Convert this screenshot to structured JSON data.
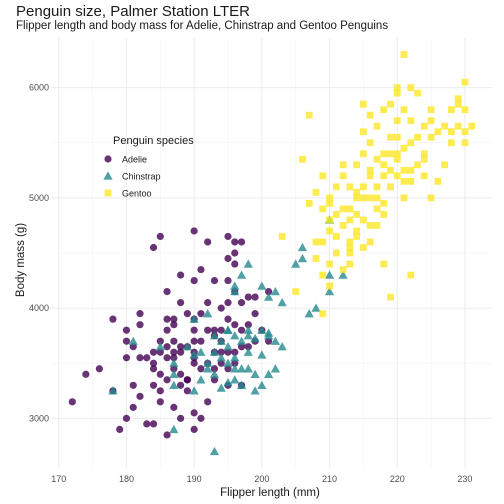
{
  "chart_data": {
    "type": "scatter",
    "title": "Penguin size, Palmer Station LTER",
    "subtitle": "Flipper length and body mass for Adelie, Chinstrap and Gentoo Penguins",
    "xlabel": "Flipper length (mm)",
    "ylabel": "Body mass (g)",
    "xlim": [
      169,
      234
    ],
    "ylim": [
      2550,
      6450
    ],
    "xticks": [
      170,
      180,
      190,
      200,
      210,
      220,
      230
    ],
    "yticks": [
      3000,
      4000,
      5000,
      6000
    ],
    "grid": true,
    "legend": {
      "title": "Penguin species",
      "placement": "inside-left"
    },
    "series": [
      {
        "name": "Adelie",
        "marker": "circle",
        "color": "#440154",
        "points": [
          [
            172,
            3150
          ],
          [
            174,
            3400
          ],
          [
            176,
            3450
          ],
          [
            178,
            3250
          ],
          [
            178,
            3900
          ],
          [
            180,
            3700
          ],
          [
            180,
            3800
          ],
          [
            180,
            3550
          ],
          [
            180,
            3000
          ],
          [
            181,
            3650
          ],
          [
            181,
            3300
          ],
          [
            182,
            3200
          ],
          [
            182,
            3950
          ],
          [
            182,
            3850
          ],
          [
            183,
            3550
          ],
          [
            184,
            3450
          ],
          [
            184,
            3600
          ],
          [
            184,
            3300
          ],
          [
            184,
            2950
          ],
          [
            185,
            3700
          ],
          [
            185,
            3600
          ],
          [
            185,
            3250
          ],
          [
            185,
            3150
          ],
          [
            185,
            3400
          ],
          [
            186,
            3800
          ],
          [
            186,
            3550
          ],
          [
            186,
            3650
          ],
          [
            186,
            4150
          ],
          [
            186,
            3350
          ],
          [
            187,
            3700
          ],
          [
            187,
            3850
          ],
          [
            187,
            3450
          ],
          [
            187,
            3550
          ],
          [
            187,
            3600
          ],
          [
            188,
            3300
          ],
          [
            188,
            3400
          ],
          [
            188,
            3600
          ],
          [
            188,
            4300
          ],
          [
            189,
            3650
          ],
          [
            189,
            3350
          ],
          [
            189,
            3950
          ],
          [
            189,
            3250
          ],
          [
            190,
            3600
          ],
          [
            190,
            3700
          ],
          [
            190,
            3800
          ],
          [
            190,
            3900
          ],
          [
            190,
            4250
          ],
          [
            190,
            3500
          ],
          [
            190,
            3550
          ],
          [
            190,
            3050
          ],
          [
            191,
            3450
          ],
          [
            191,
            3700
          ],
          [
            191,
            3950
          ],
          [
            191,
            4350
          ],
          [
            192,
            3800
          ],
          [
            192,
            4050
          ],
          [
            192,
            4600
          ],
          [
            192,
            3500
          ],
          [
            193,
            3600
          ],
          [
            193,
            3800
          ],
          [
            193,
            4250
          ],
          [
            193,
            3750
          ],
          [
            193,
            3450
          ],
          [
            194,
            3700
          ],
          [
            194,
            3800
          ],
          [
            194,
            4000
          ],
          [
            194,
            3600
          ],
          [
            194,
            3500
          ],
          [
            195,
            3900
          ],
          [
            195,
            4050
          ],
          [
            195,
            3600
          ],
          [
            195,
            4450
          ],
          [
            195,
            3300
          ],
          [
            195,
            3450
          ],
          [
            196,
            3500
          ],
          [
            196,
            3850
          ],
          [
            196,
            4150
          ],
          [
            196,
            4400
          ],
          [
            196,
            3600
          ],
          [
            197,
            3650
          ],
          [
            197,
            3800
          ],
          [
            197,
            4050
          ],
          [
            197,
            4600
          ],
          [
            197,
            3300
          ],
          [
            198,
            3850
          ],
          [
            198,
            3650
          ],
          [
            198,
            4100
          ],
          [
            199,
            3950
          ],
          [
            199,
            3700
          ],
          [
            199,
            4100
          ],
          [
            200,
            3800
          ],
          [
            201,
            3700
          ],
          [
            201,
            4150
          ],
          [
            184,
            4550
          ],
          [
            185,
            4650
          ],
          [
            190,
            4700
          ],
          [
            195,
            4250
          ],
          [
            196,
            4500
          ],
          [
            190,
            2900
          ],
          [
            188,
            3000
          ],
          [
            187,
            3100
          ],
          [
            186,
            2850
          ],
          [
            183,
            2950
          ],
          [
            179,
            2900
          ],
          [
            195,
            4650
          ],
          [
            196,
            4600
          ],
          [
            188,
            4050
          ],
          [
            189,
            3350
          ],
          [
            191,
            3000
          ],
          [
            187,
            3900
          ],
          [
            184,
            3500
          ],
          [
            181,
            3100
          ],
          [
            182,
            3550
          ],
          [
            186,
            3900
          ],
          [
            188,
            3650
          ],
          [
            192,
            3150
          ],
          [
            193,
            3350
          ]
        ]
      },
      {
        "name": "Chinstrap",
        "marker": "triangle",
        "color": "#238a8d",
        "points": [
          [
            178,
            3250
          ],
          [
            181,
            3700
          ],
          [
            185,
            3650
          ],
          [
            187,
            3400
          ],
          [
            187,
            2900
          ],
          [
            187,
            3300
          ],
          [
            189,
            3650
          ],
          [
            190,
            3575
          ],
          [
            190,
            3250
          ],
          [
            190,
            3900
          ],
          [
            191,
            3350
          ],
          [
            192,
            3500
          ],
          [
            192,
            3950
          ],
          [
            193,
            3400
          ],
          [
            193,
            3600
          ],
          [
            193,
            3750
          ],
          [
            194,
            3550
          ],
          [
            194,
            3700
          ],
          [
            195,
            3800
          ],
          [
            195,
            3650
          ],
          [
            195,
            3325
          ],
          [
            195,
            3500
          ],
          [
            196,
            3550
          ],
          [
            196,
            3450
          ],
          [
            196,
            3750
          ],
          [
            196,
            4200
          ],
          [
            197,
            3700
          ],
          [
            197,
            3300
          ],
          [
            197,
            4300
          ],
          [
            198,
            3750
          ],
          [
            198,
            3600
          ],
          [
            198,
            3800
          ],
          [
            199,
            3725
          ],
          [
            199,
            3400
          ],
          [
            200,
            3800
          ],
          [
            200,
            3300
          ],
          [
            200,
            3575
          ],
          [
            201,
            3400
          ],
          [
            201,
            3775
          ],
          [
            201,
            4100
          ],
          [
            202,
            3700
          ],
          [
            202,
            4150
          ],
          [
            203,
            4050
          ],
          [
            205,
            4400
          ],
          [
            206,
            4550
          ],
          [
            207,
            3950
          ],
          [
            208,
            4000
          ],
          [
            210,
            4300
          ],
          [
            210,
            4800
          ],
          [
            212,
            4300
          ],
          [
            193,
            2700
          ],
          [
            198,
            4400
          ],
          [
            200,
            4200
          ],
          [
            196,
            4150
          ],
          [
            202,
            3450
          ],
          [
            199,
            3250
          ],
          [
            191,
            3600
          ],
          [
            210,
            4150
          ],
          [
            187,
            3500
          ],
          [
            194,
            3275
          ],
          [
            195,
            3800
          ],
          [
            197,
            3450
          ],
          [
            203,
            3650
          ],
          [
            201,
            3750
          ],
          [
            192,
            3450
          ],
          [
            196,
            3350
          ],
          [
            198,
            3450
          ],
          [
            206,
            4450
          ]
        ]
      },
      {
        "name": "Gentoo",
        "marker": "square",
        "color": "#fde725",
        "points": [
          [
            203,
            4650
          ],
          [
            207,
            4950
          ],
          [
            208,
            4600
          ],
          [
            208,
            5050
          ],
          [
            209,
            4300
          ],
          [
            209,
            4600
          ],
          [
            209,
            4900
          ],
          [
            209,
            3950
          ],
          [
            210,
            4400
          ],
          [
            210,
            4700
          ],
          [
            210,
            4800
          ],
          [
            210,
            4950
          ],
          [
            210,
            5000
          ],
          [
            210,
            4200
          ],
          [
            211,
            4500
          ],
          [
            211,
            4650
          ],
          [
            211,
            4850
          ],
          [
            212,
            4750
          ],
          [
            212,
            4900
          ],
          [
            212,
            5200
          ],
          [
            212,
            4350
          ],
          [
            213,
            4550
          ],
          [
            213,
            4600
          ],
          [
            213,
            4900
          ],
          [
            213,
            5100
          ],
          [
            213,
            4400
          ],
          [
            214,
            4650
          ],
          [
            214,
            4850
          ],
          [
            214,
            5000
          ],
          [
            214,
            5300
          ],
          [
            214,
            4700
          ],
          [
            215,
            4800
          ],
          [
            215,
            5000
          ],
          [
            215,
            5100
          ],
          [
            215,
            5400
          ],
          [
            215,
            4550
          ],
          [
            215,
            5600
          ],
          [
            215,
            5850
          ],
          [
            216,
            4750
          ],
          [
            216,
            5200
          ],
          [
            216,
            5500
          ],
          [
            216,
            4600
          ],
          [
            216,
            5000
          ],
          [
            217,
            4900
          ],
          [
            217,
            5100
          ],
          [
            217,
            5350
          ],
          [
            217,
            5650
          ],
          [
            217,
            4750
          ],
          [
            218,
            4950
          ],
          [
            218,
            5200
          ],
          [
            218,
            5400
          ],
          [
            218,
            5800
          ],
          [
            218,
            4850
          ],
          [
            219,
            5100
          ],
          [
            219,
            5250
          ],
          [
            219,
            5550
          ],
          [
            219,
            4100
          ],
          [
            219,
            5400
          ],
          [
            220,
            5200
          ],
          [
            220,
            5350
          ],
          [
            220,
            5700
          ],
          [
            220,
            5950
          ],
          [
            220,
            5400
          ],
          [
            221,
            5250
          ],
          [
            221,
            5450
          ],
          [
            221,
            5800
          ],
          [
            221,
            5000
          ],
          [
            221,
            5150
          ],
          [
            222,
            5250
          ],
          [
            222,
            5500
          ],
          [
            222,
            5700
          ],
          [
            222,
            4300
          ],
          [
            222,
            6000
          ],
          [
            223,
            5300
          ],
          [
            223,
            5550
          ],
          [
            223,
            5950
          ],
          [
            224,
            5350
          ],
          [
            224,
            5650
          ],
          [
            224,
            5400
          ],
          [
            225,
            5700
          ],
          [
            225,
            5800
          ],
          [
            225,
            5550
          ],
          [
            226,
            5600
          ],
          [
            226,
            5150
          ],
          [
            227,
            5650
          ],
          [
            228,
            5600
          ],
          [
            228,
            5800
          ],
          [
            228,
            5500
          ],
          [
            229,
            5650
          ],
          [
            229,
            5900
          ],
          [
            229,
            5850
          ],
          [
            230,
            5500
          ],
          [
            230,
            5600
          ],
          [
            230,
            5800
          ],
          [
            230,
            6050
          ],
          [
            231,
            5650
          ],
          [
            224,
            5200
          ],
          [
            220,
            6000
          ],
          [
            221,
            6300
          ],
          [
            205,
            4150
          ],
          [
            206,
            5350
          ],
          [
            207,
            5750
          ],
          [
            208,
            4450
          ],
          [
            212,
            5300
          ],
          [
            213,
            4800
          ],
          [
            216,
            5250
          ],
          [
            218,
            5300
          ],
          [
            222,
            5150
          ],
          [
            225,
            5000
          ],
          [
            227,
            5300
          ],
          [
            216,
            5750
          ],
          [
            219,
            5850
          ],
          [
            209,
            5200
          ],
          [
            211,
            5100
          ],
          [
            213,
            4500
          ],
          [
            214,
            5050
          ],
          [
            217,
            5000
          ],
          [
            218,
            4400
          ],
          [
            220,
            5550
          ]
        ]
      }
    ]
  }
}
